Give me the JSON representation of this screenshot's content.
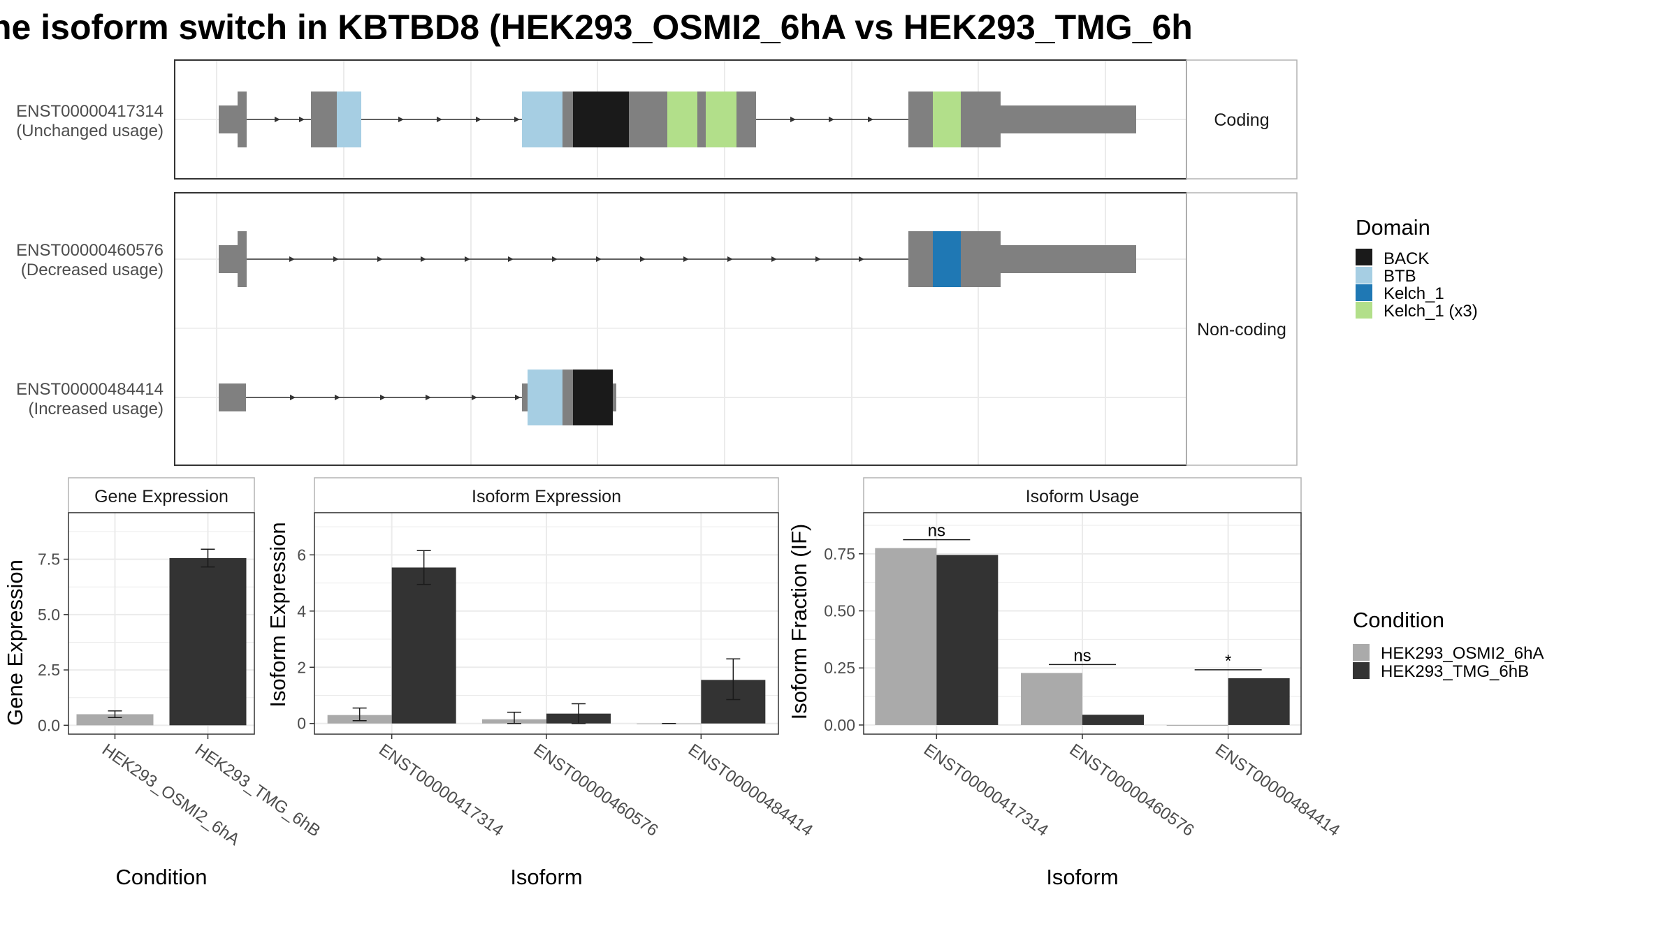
{
  "title": "ne isoform switch in KBTBD8 (HEK293_OSMI2_6hA vs HEK293_TMG_6h",
  "colors": {
    "BACK": "#1a1a1a",
    "BTB": "#a6cee3",
    "Kelch_1": "#1f78b4",
    "Kelch_1 (x3)": "#b2df8a",
    "exon": "#808080",
    "cond1": "#aaaaaa",
    "cond2": "#333333",
    "grid": "#ebebeb"
  },
  "chart_data": [
    {
      "type": "gene-structure",
      "strips": [
        "Coding",
        "Non-coding"
      ],
      "transcripts": [
        {
          "id": "ENST00000417314",
          "usage": "(Unchanged usage)",
          "group": "Coding"
        },
        {
          "id": "ENST00000460576",
          "usage": "(Decreased usage)",
          "group": "Non-coding"
        },
        {
          "id": "ENST00000484414",
          "usage": "(Increased usage)",
          "group": "Non-coding"
        }
      ],
      "legend": {
        "title": "Domain",
        "items": [
          "BACK",
          "BTB",
          "Kelch_1",
          "Kelch_1 (x3)"
        ]
      }
    },
    {
      "type": "bar",
      "panel": "Gene Expression",
      "xlabel": "Condition",
      "ylabel": "Gene Expression",
      "categories": [
        "HEK293_OSMI2_6hA",
        "HEK293_TMG_6hB"
      ],
      "values": [
        0.5,
        7.55
      ],
      "errors": [
        [
          0.35,
          0.65
        ],
        [
          7.15,
          7.95
        ]
      ],
      "yticks": [
        "0.0",
        "2.5",
        "5.0",
        "7.5"
      ],
      "tick_values": [
        0,
        2.5,
        5,
        7.5
      ],
      "ylim": [
        -0.4,
        9.6
      ]
    },
    {
      "type": "bar",
      "panel": "Isoform Expression",
      "xlabel": "Isoform",
      "ylabel": "Isoform Expression",
      "categories": [
        "ENST00000417314",
        "ENST00000460576",
        "ENST00000484414"
      ],
      "series": [
        {
          "name": "HEK293_OSMI2_6hA",
          "values": [
            0.3,
            0.15,
            0.0
          ],
          "errors": [
            [
              0.1,
              0.55
            ],
            [
              0.0,
              0.4
            ],
            [
              0.0,
              0.0
            ]
          ]
        },
        {
          "name": "HEK293_TMG_6hB",
          "values": [
            5.55,
            0.35,
            1.55
          ],
          "errors": [
            [
              4.95,
              6.15
            ],
            [
              0.0,
              0.7
            ],
            [
              0.85,
              2.3
            ]
          ]
        }
      ],
      "yticks": [
        "0",
        "2",
        "4",
        "6"
      ],
      "tick_values": [
        0,
        2,
        4,
        6
      ],
      "ylim": [
        -0.38,
        7.5
      ]
    },
    {
      "type": "bar",
      "panel": "Isoform Usage",
      "xlabel": "Isoform",
      "ylabel": "Isoform Fraction (IF)",
      "categories": [
        "ENST00000417314",
        "ENST00000460576",
        "ENST00000484414"
      ],
      "series": [
        {
          "name": "HEK293_OSMI2_6hA",
          "values": [
            0.775,
            0.228,
            0.0
          ]
        },
        {
          "name": "HEK293_TMG_6hB",
          "values": [
            0.745,
            0.045,
            0.205
          ]
        }
      ],
      "significance": [
        "ns",
        "ns",
        "*"
      ],
      "yticks": [
        "0.00",
        "0.25",
        "0.50",
        "0.75"
      ],
      "tick_values": [
        0,
        0.25,
        0.5,
        0.75
      ],
      "ylim": [
        -0.04,
        0.93
      ]
    }
  ],
  "condition_legend": {
    "title": "Condition",
    "items": [
      "HEK293_OSMI2_6hA",
      "HEK293_TMG_6hB"
    ]
  }
}
